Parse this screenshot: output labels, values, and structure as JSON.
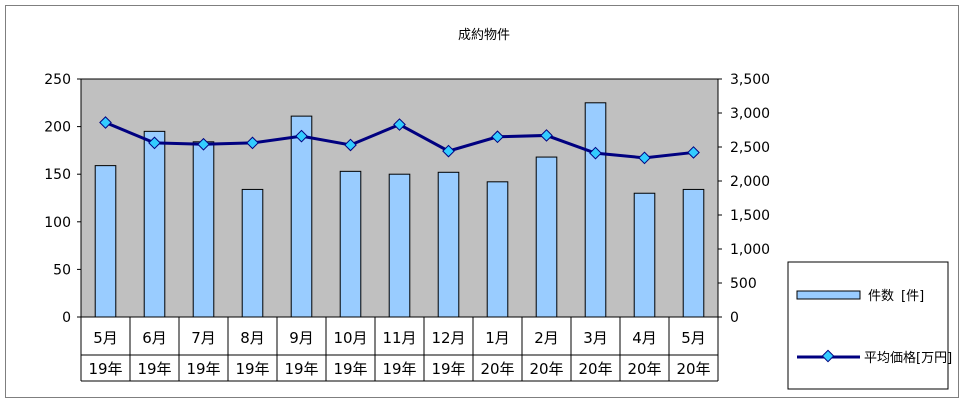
{
  "chart_data": {
    "type": "bar",
    "title": "成約物件",
    "categories": [
      "5月",
      "6月",
      "7月",
      "8月",
      "9月",
      "10月",
      "11月",
      "12月",
      "1月",
      "2月",
      "3月",
      "4月",
      "5月"
    ],
    "category_years": [
      "19年",
      "19年",
      "19年",
      "19年",
      "19年",
      "19年",
      "19年",
      "19年",
      "20年",
      "20年",
      "20年",
      "20年",
      "20年"
    ],
    "y_left": {
      "ticks": [
        "0",
        "50",
        "100",
        "150",
        "200",
        "250"
      ],
      "ylim": [
        0,
        250
      ]
    },
    "y_right": {
      "ticks": [
        "0",
        "500",
        "1,000",
        "1,500",
        "2,000",
        "2,500",
        "3,000",
        "3,500"
      ],
      "ylim": [
        0,
        3500
      ]
    },
    "series": [
      {
        "name": "件数 [件]",
        "type": "bar",
        "axis": "left",
        "color": "#99ccff",
        "values": [
          159,
          195,
          184,
          134,
          211,
          153,
          150,
          152,
          142,
          168,
          225,
          130,
          134
        ]
      },
      {
        "name": "平均価格[万円]",
        "type": "line",
        "axis": "right",
        "color": "#000080",
        "marker_color": "#33ccff",
        "values": [
          2860,
          2560,
          2540,
          2560,
          2660,
          2530,
          2830,
          2440,
          2650,
          2670,
          2410,
          2340,
          2420
        ]
      }
    ],
    "legend": {
      "position": "right-bottom",
      "label_count": "件数",
      "label_unit": "[件]",
      "label_price": "平均価格[万円]"
    },
    "plot_background": "#c0c0c0",
    "grid": false
  }
}
